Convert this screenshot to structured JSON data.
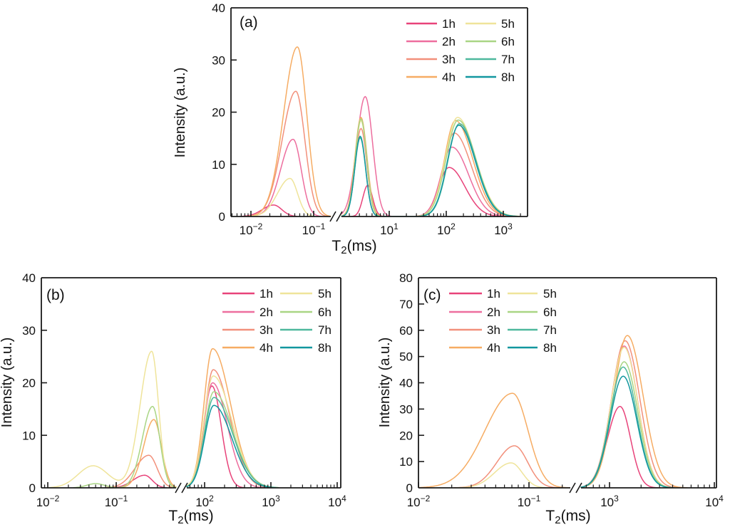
{
  "figure": {
    "background": "#ffffff",
    "series_labels": [
      "1h",
      "2h",
      "3h",
      "4h",
      "5h",
      "6h",
      "7h",
      "8h"
    ],
    "palette": {
      "1h": "#E8437A",
      "2h": "#ED6E9E",
      "3h": "#F2907B",
      "4h": "#F6AC63",
      "5h": "#EFE49A",
      "6h": "#A9D584",
      "7h": "#4EB89D",
      "8h": "#12979F"
    },
    "axis_color": "#1a1a1a"
  },
  "chart_data": [
    {
      "id": "a",
      "type": "line",
      "panel_label": "(a)",
      "ylabel": "Intensity (a.u.)",
      "xlabel": {
        "base": "T",
        "sub": "2",
        "suffix": "(ms)"
      },
      "x_scale": "log10-broken",
      "ylim": [
        0,
        40
      ],
      "yticks": [
        0,
        10,
        20,
        30,
        40
      ],
      "xtick_exponents": [
        [
          -2,
          -1
        ],
        [
          1,
          2,
          3
        ]
      ],
      "x_segments_log_range": [
        [
          -2.318,
          -0.727
        ],
        [
          0.163,
          3.425
        ]
      ],
      "axis_break": true,
      "legend": {
        "position": "top-right",
        "columns": 2,
        "entries": [
          "1h",
          "2h",
          "3h",
          "4h",
          "5h",
          "6h",
          "7h",
          "8h"
        ]
      },
      "series": [
        {
          "name": "1h",
          "peaks": [
            {
              "t2_ms": 0.023,
              "amp": 2.2,
              "sl": 0.18,
              "sr": 0.13
            },
            {
              "t2_ms": 4.2,
              "amp": 6.0,
              "sl": 0.085,
              "sr": 0.085
            },
            {
              "t2_ms": 112,
              "amp": 9.4,
              "sl": 0.18,
              "sr": 0.28
            }
          ]
        },
        {
          "name": "2h",
          "peaks": [
            {
              "t2_ms": 0.047,
              "amp": 14.8,
              "sl": 0.2,
              "sr": 0.13
            },
            {
              "t2_ms": 3.8,
              "amp": 23.0,
              "sl": 0.15,
              "sr": 0.13
            },
            {
              "t2_ms": 126,
              "amp": 13.3,
              "sl": 0.19,
              "sr": 0.29
            }
          ]
        },
        {
          "name": "3h",
          "peaks": [
            {
              "t2_ms": 0.052,
              "amp": 24.0,
              "sl": 0.22,
              "sr": 0.145
            },
            {
              "t2_ms": 3.2,
              "amp": 16.9,
              "sl": 0.1,
              "sr": 0.1
            },
            {
              "t2_ms": 138,
              "amp": 16.0,
              "sl": 0.19,
              "sr": 0.3
            }
          ]
        },
        {
          "name": "4h",
          "peaks": [
            {
              "t2_ms": 0.055,
              "amp": 32.5,
              "sl": 0.22,
              "sr": 0.15
            },
            {
              "t2_ms": 3.2,
              "amp": 19.0,
              "sl": 0.105,
              "sr": 0.105
            },
            {
              "t2_ms": 145,
              "amp": 18.4,
              "sl": 0.19,
              "sr": 0.3
            }
          ]
        },
        {
          "name": "5h",
          "peaks": [
            {
              "t2_ms": 0.042,
              "amp": 7.3,
              "sl": 0.2,
              "sr": 0.12
            },
            {
              "t2_ms": 3.2,
              "amp": 18.4,
              "sl": 0.1,
              "sr": 0.1
            },
            {
              "t2_ms": 158,
              "amp": 19.0,
              "sl": 0.21,
              "sr": 0.31
            }
          ]
        },
        {
          "name": "6h",
          "peaks": [
            {
              "t2_ms": 3.2,
              "amp": 18.7,
              "sl": 0.1,
              "sr": 0.1
            },
            {
              "t2_ms": 162,
              "amp": 18.5,
              "sl": 0.21,
              "sr": 0.3
            }
          ]
        },
        {
          "name": "7h",
          "peaks": [
            {
              "t2_ms": 3.1,
              "amp": 15.1,
              "sl": 0.095,
              "sr": 0.095
            },
            {
              "t2_ms": 170,
              "amp": 17.8,
              "sl": 0.2,
              "sr": 0.29
            }
          ]
        },
        {
          "name": "8h",
          "peaks": [
            {
              "t2_ms": 3.1,
              "amp": 15.4,
              "sl": 0.095,
              "sr": 0.095
            },
            {
              "t2_ms": 166,
              "amp": 17.5,
              "sl": 0.2,
              "sr": 0.29
            }
          ]
        }
      ]
    },
    {
      "id": "b",
      "type": "line",
      "panel_label": "(b)",
      "ylabel": "Intensity (a.u.)",
      "xlabel": {
        "base": "T",
        "sub": "2",
        "suffix": "(ms)"
      },
      "x_scale": "log10-broken",
      "ylim": [
        0,
        40
      ],
      "yticks": [
        0,
        10,
        20,
        30,
        40
      ],
      "xtick_exponents": [
        [
          -2,
          -1
        ],
        [
          2,
          3,
          4
        ]
      ],
      "x_segments_log_range": [
        [
          -2.094,
          -0.125
        ],
        [
          1.731,
          4.054
        ]
      ],
      "axis_break": true,
      "legend": {
        "position": "top-right",
        "columns": 2,
        "entries": [
          "1h",
          "2h",
          "3h",
          "4h",
          "5h",
          "6h",
          "7h",
          "8h"
        ]
      },
      "series": [
        {
          "name": "1h",
          "peaks": [
            {
              "t2_ms": 0.26,
              "amp": 2.4,
              "sl": 0.17,
              "sr": 0.11
            },
            {
              "t2_ms": 129,
              "amp": 19.4,
              "sl": 0.13,
              "sr": 0.14
            }
          ]
        },
        {
          "name": "2h",
          "peaks": [
            {
              "t2_ms": 132,
              "amp": 20.0,
              "sl": 0.13,
              "sr": 0.22
            }
          ]
        },
        {
          "name": "3h",
          "peaks": [
            {
              "t2_ms": 0.3,
              "amp": 6.2,
              "sl": 0.2,
              "sr": 0.12
            },
            {
              "t2_ms": 135,
              "amp": 22.5,
              "sl": 0.13,
              "sr": 0.25
            }
          ]
        },
        {
          "name": "4h",
          "peaks": [
            {
              "t2_ms": 0.355,
              "amp": 13.0,
              "sl": 0.15,
              "sr": 0.11
            },
            {
              "t2_ms": 132,
              "amp": 26.5,
              "sl": 0.13,
              "sr": 0.27
            }
          ]
        },
        {
          "name": "5h",
          "peaks": [
            {
              "t2_ms": 0.046,
              "amp": 4.2,
              "sl": 0.22,
              "sr": 0.22
            },
            {
              "t2_ms": 0.33,
              "amp": 26.0,
              "sl": 0.17,
              "sr": 0.1
            },
            {
              "t2_ms": 135,
              "amp": 21.3,
              "sl": 0.14,
              "sr": 0.28
            }
          ]
        },
        {
          "name": "6h",
          "peaks": [
            {
              "t2_ms": 0.05,
              "amp": 0.8,
              "sl": 0.13,
              "sr": 0.13
            },
            {
              "t2_ms": 0.34,
              "amp": 15.5,
              "sl": 0.15,
              "sr": 0.105
            },
            {
              "t2_ms": 138,
              "amp": 18.3,
              "sl": 0.14,
              "sr": 0.28
            }
          ]
        },
        {
          "name": "7h",
          "peaks": [
            {
              "t2_ms": 138,
              "amp": 17.2,
              "sl": 0.14,
              "sr": 0.28
            }
          ]
        },
        {
          "name": "8h",
          "peaks": [
            {
              "t2_ms": 138,
              "amp": 15.7,
              "sl": 0.14,
              "sr": 0.27
            }
          ]
        }
      ]
    },
    {
      "id": "c",
      "type": "line",
      "panel_label": "(c)",
      "ylabel": "Intensity (a.u.)",
      "xlabel": {
        "base": "T",
        "sub": "2",
        "suffix": "(ms)"
      },
      "x_scale": "log10-broken",
      "ylim": [
        0,
        80
      ],
      "yticks": [
        0,
        10,
        20,
        30,
        40,
        50,
        60,
        70,
        80
      ],
      "xtick_exponents": [
        [
          -2,
          -1
        ],
        [
          3,
          4
        ]
      ],
      "x_segments_log_range": [
        [
          -2.0,
          -0.626
        ],
        [
          2.728,
          4.02
        ]
      ],
      "axis_break": true,
      "legend": {
        "position": "top-left",
        "columns": 2,
        "entries": [
          "1h",
          "2h",
          "3h",
          "4h",
          "5h",
          "6h",
          "7h",
          "8h"
        ]
      },
      "series": [
        {
          "name": "1h",
          "peaks": [
            {
              "t2_ms": 1260,
              "amp": 31.0,
              "sl": 0.12,
              "sr": 0.1
            }
          ]
        },
        {
          "name": "2h",
          "peaks": [
            {
              "t2_ms": 1380,
              "amp": 54.0,
              "sl": 0.125,
              "sr": 0.13
            }
          ]
        },
        {
          "name": "3h",
          "peaks": [
            {
              "t2_ms": 0.074,
              "amp": 16.0,
              "sl": 0.16,
              "sr": 0.12
            },
            {
              "t2_ms": 1410,
              "amp": 56.0,
              "sl": 0.13,
              "sr": 0.14
            }
          ]
        },
        {
          "name": "4h",
          "peaks": [
            {
              "t2_ms": 0.071,
              "amp": 36.0,
              "sl": 0.25,
              "sr": 0.14
            },
            {
              "t2_ms": 1480,
              "amp": 58.0,
              "sl": 0.13,
              "sr": 0.15
            }
          ]
        },
        {
          "name": "5h",
          "peaks": [
            {
              "t2_ms": 0.069,
              "amp": 9.5,
              "sl": 0.15,
              "sr": 0.1
            },
            {
              "t2_ms": 1380,
              "amp": 53.5,
              "sl": 0.125,
              "sr": 0.13
            }
          ]
        },
        {
          "name": "6h",
          "peaks": [
            {
              "t2_ms": 1380,
              "amp": 48.0,
              "sl": 0.125,
              "sr": 0.13
            }
          ]
        },
        {
          "name": "7h",
          "peaks": [
            {
              "t2_ms": 1350,
              "amp": 46.0,
              "sl": 0.125,
              "sr": 0.13
            }
          ]
        },
        {
          "name": "8h",
          "peaks": [
            {
              "t2_ms": 1350,
              "amp": 42.5,
              "sl": 0.125,
              "sr": 0.13
            }
          ]
        }
      ]
    }
  ]
}
